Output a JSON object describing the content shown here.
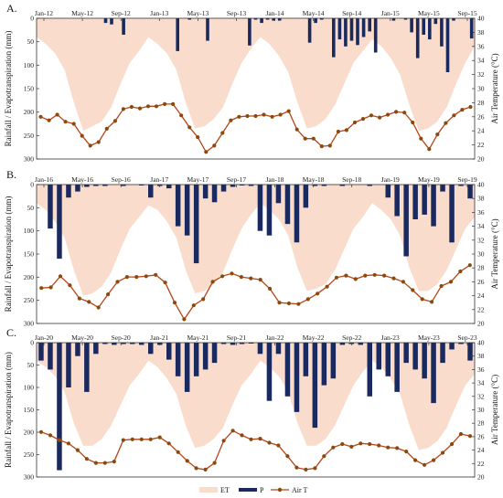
{
  "colors": {
    "et": "#f9dccb",
    "p": "#1b2a5e",
    "airt_line": "#b8441a",
    "airt_marker": "#8a4a0c",
    "axis": "#333333"
  },
  "legend": {
    "et": "ET",
    "p": "P",
    "airt": "Air T"
  },
  "axes": {
    "ylabel_left": "Rainfall / Evapotranspiration (mm)",
    "ylabel_right": "Air Temperature (°C)",
    "left_ticks": [
      "0",
      "50",
      "100",
      "150",
      "200",
      "250",
      "300"
    ],
    "right_ticks": [
      "20",
      "22",
      "24",
      "26",
      "28",
      "30",
      "32",
      "34",
      "36",
      "38",
      "40"
    ]
  },
  "chart_data": [
    {
      "type": "bar",
      "panel": "A.",
      "x_tick_labels": [
        "Jan-12",
        "May-12",
        "Sep-12",
        "Jan-13",
        "May-13",
        "Sep-13",
        "Jan-14",
        "May-14",
        "Sep-14",
        "Jan-15",
        "May-15",
        "Sep-15"
      ],
      "left_axis": {
        "label": "Rainfall / Evapotranspiration (mm)",
        "range": [
          300,
          0
        ],
        "inverted": true
      },
      "right_axis": {
        "label": "Air Temperature (°C)",
        "range": [
          20,
          40
        ]
      },
      "series": [
        {
          "name": "ET",
          "kind": "area",
          "values": [
            40,
            55,
            75,
            110,
            180,
            240,
            230,
            220,
            190,
            140,
            95,
            70,
            40,
            55,
            75,
            110,
            180,
            235,
            230,
            215,
            190,
            140,
            95,
            65,
            40,
            55,
            80,
            115,
            180,
            235,
            230,
            215,
            185,
            140,
            95,
            70,
            45,
            60,
            85,
            120,
            185,
            240,
            235,
            220,
            190,
            140,
            95,
            60
          ]
        },
        {
          "name": "P",
          "kind": "bar",
          "values": [
            0,
            0,
            0,
            0,
            0,
            0,
            0,
            0,
            0,
            0,
            0,
            10,
            13,
            0,
            35,
            0,
            0,
            0,
            0,
            0,
            0,
            0,
            0,
            70,
            0,
            3,
            0,
            0,
            48,
            0,
            0,
            0,
            0,
            0,
            0,
            58,
            3,
            10,
            3,
            5,
            5,
            0,
            0,
            0,
            0,
            52,
            10,
            3,
            0,
            83,
            45,
            60,
            48,
            57,
            40,
            28,
            73,
            0,
            0,
            5,
            0,
            3,
            30,
            85,
            35,
            45,
            12,
            60,
            115,
            5,
            0,
            0,
            43
          ]
        },
        {
          "name": "Air T",
          "kind": "line",
          "values": [
            26.0,
            25.5,
            26.3,
            25.3,
            25.0,
            23.3,
            21.9,
            22.4,
            24.3,
            25.4,
            27.1,
            27.4,
            27.2,
            27.5,
            27.5,
            27.8,
            27.8,
            26.2,
            24.5,
            23.1,
            21.0,
            21.9,
            23.7,
            25.5,
            26.0,
            26.1,
            26.1,
            26.3,
            26.0,
            26.3,
            26.8,
            24.2,
            22.9,
            22.9,
            21.8,
            21.9,
            23.9,
            24.1,
            25.2,
            25.7,
            26.2,
            25.9,
            26.3,
            26.7,
            26.6,
            25.2,
            22.9,
            21.4,
            23.5,
            25.1,
            26.2,
            27.0,
            27.4
          ]
        }
      ]
    },
    {
      "type": "bar",
      "panel": "B.",
      "x_tick_labels": [
        "Jan-16",
        "May-16",
        "Sep-16",
        "Jan-17",
        "May-17",
        "Sep-17",
        "Jan-18",
        "May-18",
        "Sep-18",
        "Jan-19",
        "May-19",
        "Sep-19"
      ],
      "left_axis": {
        "label": "Rainfall / Evapotranspiration (mm)",
        "range": [
          300,
          0
        ],
        "inverted": true
      },
      "right_axis": {
        "label": "Air Temperature (°C)",
        "range": [
          20,
          40
        ]
      },
      "series": [
        {
          "name": "ET",
          "kind": "area",
          "values": [
            40,
            55,
            80,
            115,
            185,
            240,
            235,
            220,
            190,
            140,
            95,
            70,
            45,
            55,
            80,
            115,
            185,
            235,
            230,
            215,
            190,
            140,
            95,
            65,
            40,
            55,
            75,
            110,
            180,
            230,
            225,
            215,
            185,
            140,
            95,
            70,
            40,
            55,
            75,
            110,
            180,
            230,
            230,
            215,
            185,
            140,
            95,
            70
          ]
        },
        {
          "name": "P",
          "kind": "bar",
          "values": [
            0,
            95,
            160,
            28,
            15,
            5,
            3,
            3,
            0,
            3,
            0,
            2,
            28,
            3,
            8,
            90,
            110,
            170,
            30,
            38,
            15,
            5,
            2,
            3,
            100,
            110,
            40,
            85,
            125,
            50,
            3,
            3,
            0,
            3,
            0,
            0,
            3,
            0,
            28,
            68,
            155,
            75,
            65,
            90,
            15,
            125,
            3,
            30
          ]
        },
        {
          "name": "Air T",
          "kind": "line",
          "values": [
            25.1,
            25.2,
            26.8,
            25.5,
            23.6,
            23.1,
            22.3,
            24.2,
            26.0,
            26.7,
            26.7,
            26.8,
            27.0,
            25.9,
            23.0,
            20.6,
            22.6,
            23.5,
            26.0,
            26.8,
            27.2,
            26.7,
            26.5,
            26.3,
            25.0,
            23.0,
            22.9,
            22.8,
            23.5,
            24.3,
            25.3,
            26.6,
            26.9,
            26.4,
            26.9,
            27.0,
            26.9,
            26.5,
            26.0,
            24.8,
            23.5,
            23.1,
            25.4,
            26.0,
            27.5,
            28.4
          ]
        }
      ]
    },
    {
      "type": "bar",
      "panel": "C.",
      "x_tick_labels": [
        "Jan-20",
        "May-20",
        "Sep-20",
        "Jan-21",
        "May-21",
        "Sep-21",
        "Jan-22",
        "May-22",
        "Sep-22",
        "Jan-23",
        "May-23",
        "Sep-23"
      ],
      "left_axis": {
        "label": "Rainfall / Evapotranspiration (mm)",
        "range": [
          300,
          0
        ],
        "inverted": true
      },
      "right_axis": {
        "label": "Air Temperature (°C)",
        "range": [
          20,
          40
        ]
      },
      "series": [
        {
          "name": "ET",
          "kind": "area",
          "values": [
            40,
            55,
            75,
            110,
            180,
            230,
            230,
            215,
            185,
            140,
            95,
            70,
            40,
            55,
            80,
            115,
            185,
            235,
            230,
            215,
            190,
            140,
            95,
            70,
            40,
            55,
            75,
            110,
            180,
            230,
            230,
            215,
            185,
            140,
            95,
            65,
            40,
            55,
            80,
            115,
            185,
            240,
            235,
            220,
            190,
            140,
            95,
            70
          ]
        },
        {
          "name": "P",
          "kind": "bar",
          "values": [
            40,
            60,
            285,
            100,
            30,
            110,
            25,
            3,
            5,
            3,
            3,
            5,
            25,
            5,
            38,
            75,
            110,
            75,
            60,
            45,
            3,
            5,
            3,
            2,
            25,
            130,
            25,
            120,
            155,
            75,
            190,
            95,
            80,
            5,
            3,
            5,
            120,
            60,
            75,
            110,
            45,
            60,
            80,
            135,
            45,
            15,
            3,
            40
          ]
        },
        {
          "name": "Air T",
          "kind": "line",
          "values": [
            26.7,
            26.2,
            25.5,
            25.0,
            24.0,
            22.7,
            22.1,
            22.1,
            22.3,
            25.5,
            25.6,
            25.6,
            25.6,
            25.9,
            25.0,
            23.7,
            22.4,
            21.3,
            21.1,
            22.1,
            25.4,
            26.9,
            26.2,
            25.6,
            25.7,
            25.1,
            24.7,
            23.1,
            21.4,
            21.1,
            21.3,
            23.1,
            24.4,
            24.9,
            24.5,
            25.0,
            24.9,
            24.7,
            24.4,
            24.3,
            23.8,
            22.5,
            21.8,
            22.5,
            23.6,
            24.9,
            26.4,
            26.1
          ]
        }
      ]
    }
  ]
}
